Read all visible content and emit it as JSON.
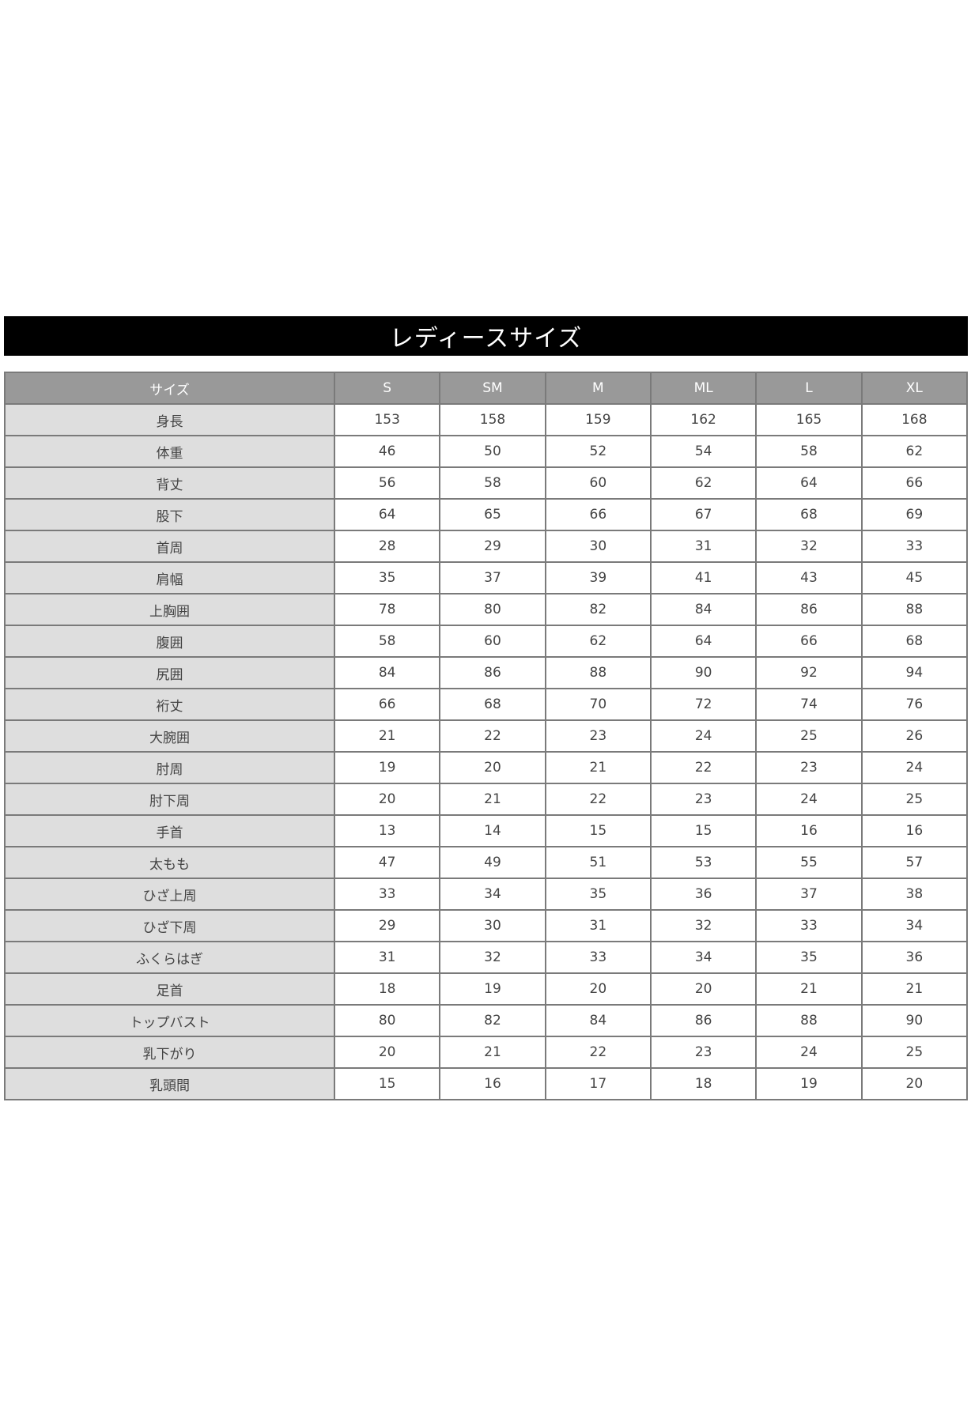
{
  "title": "レディースサイズ",
  "table": {
    "headers": [
      "サイズ",
      "S",
      "SM",
      "M",
      "ML",
      "L",
      "XL"
    ],
    "rows": [
      {
        "label": "身長",
        "values": [
          "153",
          "158",
          "159",
          "162",
          "165",
          "168"
        ]
      },
      {
        "label": "体重",
        "values": [
          "46",
          "50",
          "52",
          "54",
          "58",
          "62"
        ]
      },
      {
        "label": "背丈",
        "values": [
          "56",
          "58",
          "60",
          "62",
          "64",
          "66"
        ]
      },
      {
        "label": "股下",
        "values": [
          "64",
          "65",
          "66",
          "67",
          "68",
          "69"
        ]
      },
      {
        "label": "首周",
        "values": [
          "28",
          "29",
          "30",
          "31",
          "32",
          "33"
        ]
      },
      {
        "label": "肩幅",
        "values": [
          "35",
          "37",
          "39",
          "41",
          "43",
          "45"
        ]
      },
      {
        "label": "上胸囲",
        "values": [
          "78",
          "80",
          "82",
          "84",
          "86",
          "88"
        ]
      },
      {
        "label": "腹囲",
        "values": [
          "58",
          "60",
          "62",
          "64",
          "66",
          "68"
        ]
      },
      {
        "label": "尻囲",
        "values": [
          "84",
          "86",
          "88",
          "90",
          "92",
          "94"
        ]
      },
      {
        "label": "裄丈",
        "values": [
          "66",
          "68",
          "70",
          "72",
          "74",
          "76"
        ]
      },
      {
        "label": "大腕囲",
        "values": [
          "21",
          "22",
          "23",
          "24",
          "25",
          "26"
        ]
      },
      {
        "label": "肘周",
        "values": [
          "19",
          "20",
          "21",
          "22",
          "23",
          "24"
        ]
      },
      {
        "label": "肘下周",
        "values": [
          "20",
          "21",
          "22",
          "23",
          "24",
          "25"
        ]
      },
      {
        "label": "手首",
        "values": [
          "13",
          "14",
          "15",
          "15",
          "16",
          "16"
        ]
      },
      {
        "label": "太もも",
        "values": [
          "47",
          "49",
          "51",
          "53",
          "55",
          "57"
        ]
      },
      {
        "label": "ひざ上周",
        "values": [
          "33",
          "34",
          "35",
          "36",
          "37",
          "38"
        ]
      },
      {
        "label": "ひざ下周",
        "values": [
          "29",
          "30",
          "31",
          "32",
          "33",
          "34"
        ]
      },
      {
        "label": "ふくらはぎ",
        "values": [
          "31",
          "32",
          "33",
          "34",
          "35",
          "36"
        ]
      },
      {
        "label": "足首",
        "values": [
          "18",
          "19",
          "20",
          "20",
          "21",
          "21"
        ]
      },
      {
        "label": "トップバスト",
        "values": [
          "80",
          "82",
          "84",
          "86",
          "88",
          "90"
        ]
      },
      {
        "label": "乳下がり",
        "values": [
          "20",
          "21",
          "22",
          "23",
          "24",
          "25"
        ]
      },
      {
        "label": "乳頭間",
        "values": [
          "15",
          "16",
          "17",
          "18",
          "19",
          "20"
        ]
      }
    ]
  },
  "colors": {
    "title_bg": "#000000",
    "header_bg": "#999999",
    "label_bg": "#dedede",
    "border": "#7a7a7a"
  }
}
